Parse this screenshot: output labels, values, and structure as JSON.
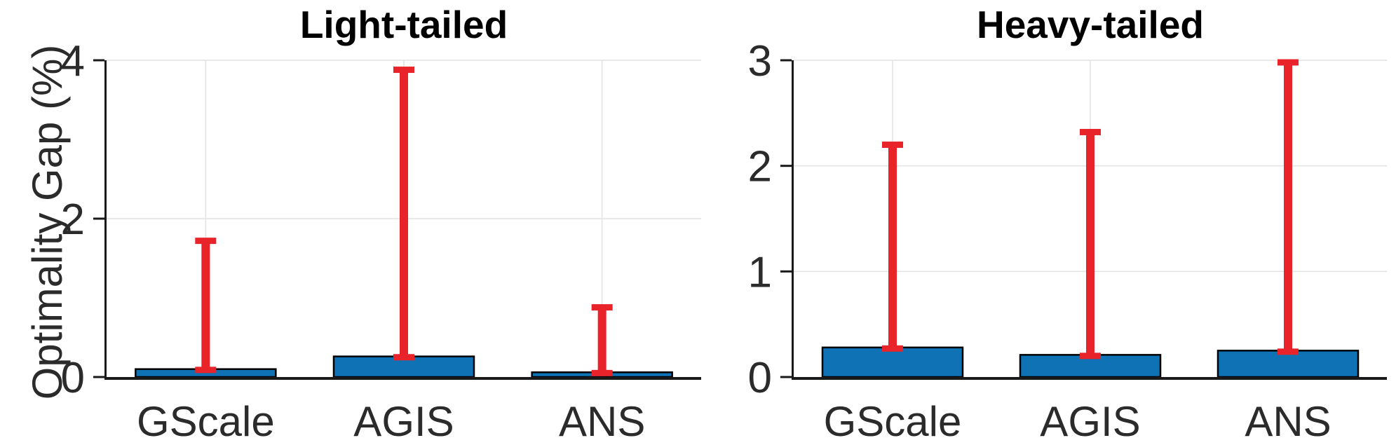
{
  "colors": {
    "bar_fill": "#0E72B5",
    "bar_edge": "#000000",
    "error_bar": "#E8232A",
    "grid": "#E2E2E2",
    "axis": "#1A1A1A",
    "tick_text": "#2B2B2B",
    "title_text": "#000000",
    "background": "#FFFFFF"
  },
  "chart_data": [
    {
      "type": "bar",
      "title": "Light-tailed",
      "ylabel": "Optimality Gap (%)",
      "xlabel": "",
      "categories": [
        "GScale",
        "AGIS",
        "ANS"
      ],
      "values": [
        0.1,
        0.26,
        0.06
      ],
      "error_low": [
        0.09,
        0.25,
        0.05
      ],
      "error_high": [
        1.72,
        3.88,
        0.88
      ],
      "ylim": [
        0,
        4
      ],
      "yticks": [
        0,
        2,
        4
      ],
      "grid": true,
      "legend": "none"
    },
    {
      "type": "bar",
      "title": "Heavy-tailed",
      "ylabel": "",
      "xlabel": "",
      "categories": [
        "GScale",
        "AGIS",
        "ANS"
      ],
      "values": [
        0.28,
        0.21,
        0.25
      ],
      "error_low": [
        0.27,
        0.2,
        0.24
      ],
      "error_high": [
        2.2,
        2.32,
        2.98
      ],
      "ylim": [
        0,
        3
      ],
      "yticks": [
        0,
        1,
        2,
        3
      ],
      "grid": true,
      "legend": "none"
    }
  ]
}
